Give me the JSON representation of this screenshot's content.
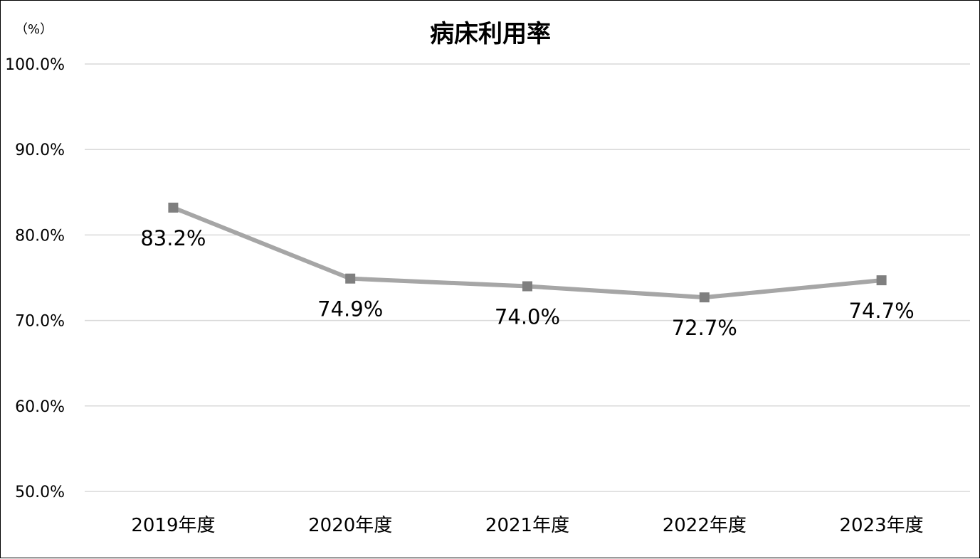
{
  "chart_data": {
    "type": "line",
    "title": "病床利用率",
    "unit_label": "（%）",
    "categories": [
      "2019年度",
      "2020年度",
      "2021年度",
      "2022年度",
      "2023年度"
    ],
    "series": [
      {
        "values": [
          83.2,
          74.9,
          74.0,
          72.7,
          74.7
        ],
        "data_labels": [
          "83.2%",
          "74.9%",
          "74.0%",
          "72.7%",
          "74.7%"
        ]
      }
    ],
    "ylim": [
      50,
      100
    ],
    "yticks": [
      {
        "value": 100,
        "label": "100.0%"
      },
      {
        "value": 90,
        "label": "90.0%"
      },
      {
        "value": 80,
        "label": "80.0%"
      },
      {
        "value": 70,
        "label": "70.0%"
      },
      {
        "value": 60,
        "label": "60.0%"
      },
      {
        "value": 50,
        "label": "50.0%"
      }
    ],
    "grid": true,
    "legend": "none",
    "line_color": "#a6a6a6",
    "marker_color": "#7f7f7f",
    "marker_shape": "square",
    "grid_color": "#d9d9d9"
  }
}
